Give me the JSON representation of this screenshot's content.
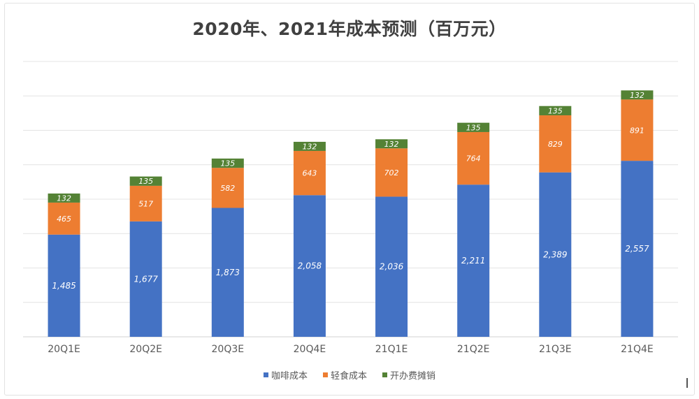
{
  "chart_data": {
    "type": "bar",
    "stacked": true,
    "title": "2020年、2021年成本预测（百万元）",
    "categories": [
      "20Q1E",
      "20Q2E",
      "20Q3E",
      "20Q4E",
      "21Q1E",
      "21Q2E",
      "21Q3E",
      "21Q4E"
    ],
    "series": [
      {
        "name": "咖啡成本",
        "color": "#4472C4",
        "values": [
          1485,
          1677,
          1873,
          2058,
          2036,
          2211,
          2389,
          2557
        ],
        "labels": [
          "1,485",
          "1,677",
          "1,873",
          "2,058",
          "2,036",
          "2,211",
          "2,389",
          "2,557"
        ]
      },
      {
        "name": "轻食成本",
        "color": "#ED7D31",
        "values": [
          465,
          517,
          582,
          643,
          702,
          764,
          829,
          891
        ],
        "labels": [
          "465",
          "517",
          "582",
          "643",
          "702",
          "764",
          "829",
          "891"
        ]
      },
      {
        "name": "开办费摊销",
        "color": "#548235",
        "values": [
          132,
          135,
          135,
          132,
          132,
          135,
          135,
          132
        ],
        "labels": [
          "132",
          "135",
          "135",
          "132",
          "132",
          "135",
          "135",
          "132"
        ]
      }
    ],
    "ylim": [
      0,
      4000
    ],
    "grid": true,
    "legend_position": "bottom",
    "data_label_color": "#ffffff"
  }
}
